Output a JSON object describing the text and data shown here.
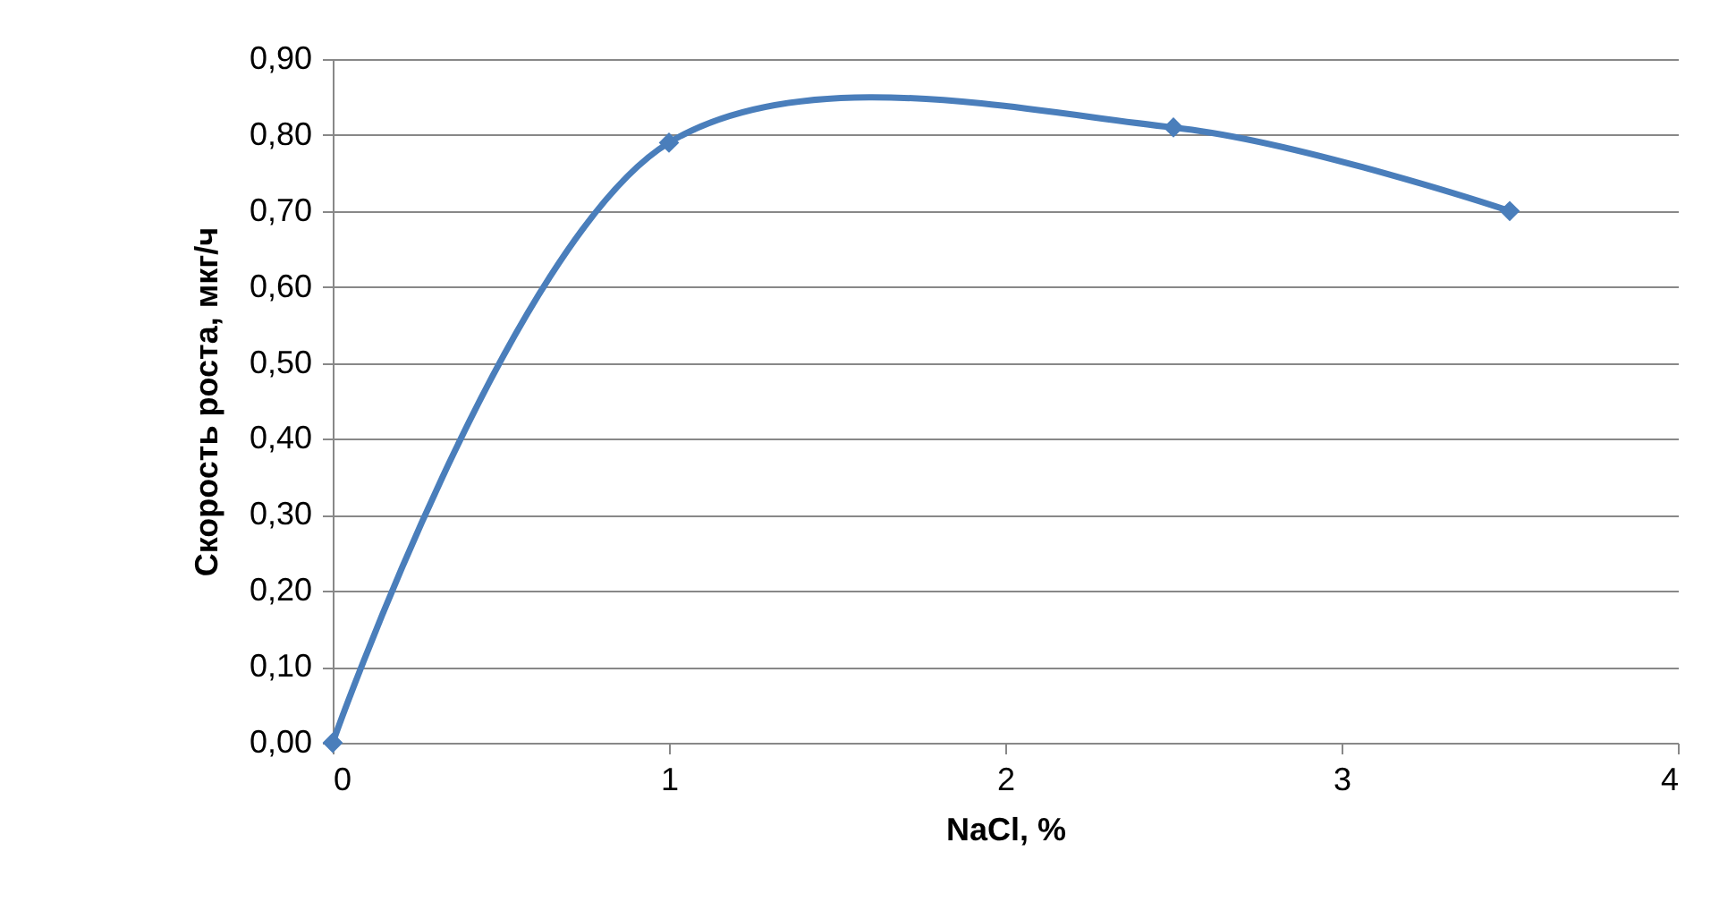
{
  "chart_data": {
    "type": "line",
    "xlabel": "NaCl, %",
    "ylabel": "Скорость роста, мкг/ч",
    "x": [
      0,
      1,
      2.5,
      3.5
    ],
    "series": [
      {
        "color": "#4a7ebb",
        "values": [
          0.0,
          0.79,
          0.81,
          0.7
        ]
      }
    ],
    "xlim": [
      0,
      4
    ],
    "xticks": [
      0,
      1,
      2,
      3,
      4
    ],
    "ylim": [
      0,
      0.9
    ],
    "yticks": [
      {
        "value": 0,
        "label": "0,00"
      },
      {
        "value": 0.1,
        "label": "0,10"
      },
      {
        "value": 0.2,
        "label": "0,20"
      },
      {
        "value": 0.3,
        "label": "0,30"
      },
      {
        "value": 0.4,
        "label": "0,40"
      },
      {
        "value": 0.5,
        "label": "0,50"
      },
      {
        "value": 0.6,
        "label": "0,60"
      },
      {
        "value": 0.7,
        "label": "0,70"
      },
      {
        "value": 0.8,
        "label": "0,80"
      },
      {
        "value": 0.9,
        "label": "0,90"
      }
    ],
    "grid": "y",
    "marker": "diamond",
    "line_style": "solid",
    "legend": false
  }
}
